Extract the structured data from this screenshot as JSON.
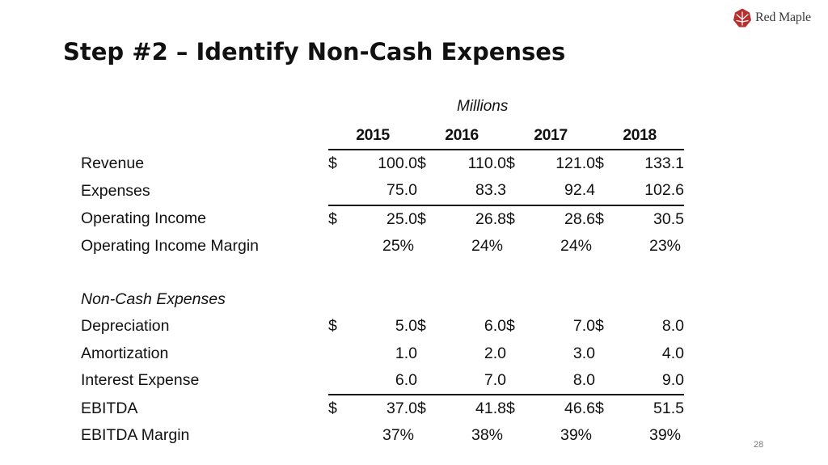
{
  "brand": {
    "name": "Red Maple",
    "color": "#b5302f"
  },
  "slide": {
    "title": "Step #2 – Identify Non-Cash Expenses",
    "units_label": "Millions",
    "page_number": "28"
  },
  "table": {
    "years": [
      "2015",
      "2016",
      "2017",
      "2018"
    ],
    "rows": {
      "revenue": {
        "label": "Revenue",
        "values": [
          "100.0",
          "110.0",
          "121.0",
          "133.1"
        ],
        "currency": "$"
      },
      "expenses": {
        "label": "Expenses",
        "values": [
          "75.0",
          "83.3",
          "92.4",
          "102.6"
        ]
      },
      "operating_income": {
        "label": "Operating Income",
        "values": [
          "25.0",
          "26.8",
          "28.6",
          "30.5"
        ],
        "currency": "$"
      },
      "operating_income_margin": {
        "label": "Operating Income Margin",
        "values": [
          "25%",
          "24%",
          "24%",
          "23%"
        ]
      },
      "non_cash_header": {
        "label": "Non-Cash Expenses"
      },
      "depreciation": {
        "label": "Depreciation",
        "values": [
          "5.0",
          "6.0",
          "7.0",
          "8.0"
        ],
        "currency": "$"
      },
      "amortization": {
        "label": "Amortization",
        "values": [
          "1.0",
          "2.0",
          "3.0",
          "4.0"
        ]
      },
      "interest_expense": {
        "label": "Interest Expense",
        "values": [
          "6.0",
          "7.0",
          "8.0",
          "9.0"
        ]
      },
      "ebitda": {
        "label": "EBITDA",
        "values": [
          "37.0",
          "41.8",
          "46.6",
          "51.5"
        ],
        "currency": "$"
      },
      "ebitda_margin": {
        "label": "EBITDA Margin",
        "values": [
          "37%",
          "38%",
          "39%",
          "39%"
        ]
      }
    }
  }
}
